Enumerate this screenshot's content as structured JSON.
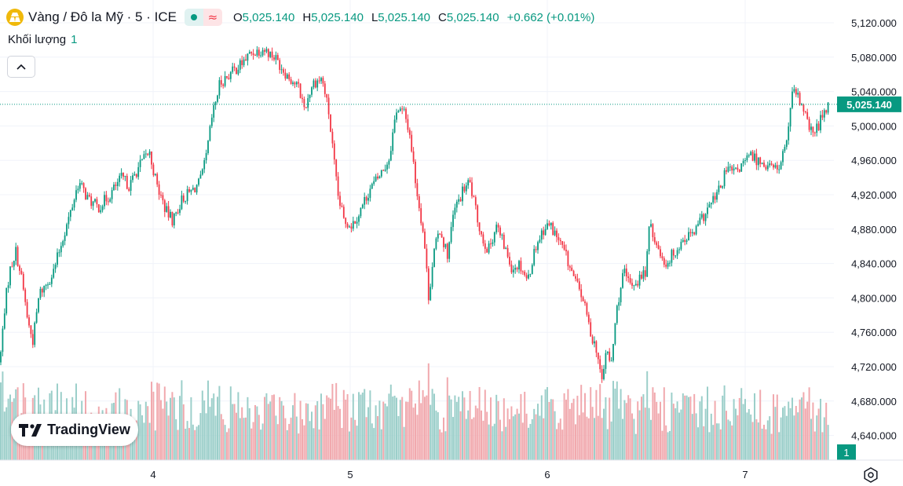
{
  "header": {
    "symbol": "Vàng / Đô la Mỹ · 5 · ICE",
    "open_label": "O",
    "open": "5,025.140",
    "high_label": "H",
    "high": "5,025.140",
    "low_label": "L",
    "low": "5,025.140",
    "close_label": "C",
    "close": "5,025.140",
    "change": "+0.662 (+0.01%)"
  },
  "volume": {
    "label": "Khối lượng",
    "value": "1",
    "badge": "1"
  },
  "logo_text": "TradingView",
  "colors": {
    "up": "#089981",
    "down": "#f23645",
    "up_vol": "#9ccfca",
    "down_vol": "#f1a9ae",
    "grid": "#f0f3fa"
  },
  "chart_data": {
    "type": "candlestick",
    "ylim": [
      4615,
      5140
    ],
    "yticks": [
      "5,120.000",
      "5,080.000",
      "5,040.000",
      "5,000.000",
      "4,960.000",
      "4,920.000",
      "4,880.000",
      "4,840.000",
      "4,800.000",
      "4,760.000",
      "4,720.000",
      "4,680.000",
      "4,640.000"
    ],
    "xticks": [
      "4",
      "5",
      "6",
      "7"
    ],
    "last_price": "5,025.140",
    "price_path": [
      [
        0,
        4725
      ],
      [
        6,
        4790
      ],
      [
        12,
        4830
      ],
      [
        20,
        4855
      ],
      [
        28,
        4820
      ],
      [
        36,
        4770
      ],
      [
        42,
        4750
      ],
      [
        50,
        4805
      ],
      [
        58,
        4815
      ],
      [
        68,
        4830
      ],
      [
        80,
        4870
      ],
      [
        90,
        4900
      ],
      [
        100,
        4935
      ],
      [
        112,
        4915
      ],
      [
        125,
        4905
      ],
      [
        140,
        4920
      ],
      [
        155,
        4940
      ],
      [
        165,
        4930
      ],
      [
        175,
        4950
      ],
      [
        190,
        4970
      ],
      [
        200,
        4930
      ],
      [
        212,
        4900
      ],
      [
        220,
        4890
      ],
      [
        232,
        4915
      ],
      [
        245,
        4925
      ],
      [
        255,
        4935
      ],
      [
        262,
        4960
      ],
      [
        270,
        5010
      ],
      [
        280,
        5050
      ],
      [
        292,
        5060
      ],
      [
        305,
        5070
      ],
      [
        320,
        5085
      ],
      [
        335,
        5090
      ],
      [
        350,
        5080
      ],
      [
        365,
        5060
      ],
      [
        380,
        5045
      ],
      [
        388,
        5020
      ],
      [
        398,
        5050
      ],
      [
        410,
        5055
      ],
      [
        418,
        5020
      ],
      [
        424,
        4970
      ],
      [
        430,
        4920
      ],
      [
        438,
        4890
      ],
      [
        448,
        4885
      ],
      [
        458,
        4900
      ],
      [
        470,
        4925
      ],
      [
        482,
        4940
      ],
      [
        495,
        4960
      ],
      [
        505,
        5020
      ],
      [
        515,
        5015
      ],
      [
        522,
        4990
      ],
      [
        530,
        4930
      ],
      [
        540,
        4870
      ],
      [
        546,
        4800
      ],
      [
        552,
        4850
      ],
      [
        560,
        4880
      ],
      [
        570,
        4850
      ],
      [
        578,
        4900
      ],
      [
        590,
        4925
      ],
      [
        598,
        4935
      ],
      [
        606,
        4900
      ],
      [
        614,
        4870
      ],
      [
        622,
        4855
      ],
      [
        632,
        4885
      ],
      [
        642,
        4860
      ],
      [
        652,
        4835
      ],
      [
        662,
        4840
      ],
      [
        672,
        4820
      ],
      [
        682,
        4860
      ],
      [
        692,
        4880
      ],
      [
        700,
        4885
      ],
      [
        710,
        4870
      ],
      [
        720,
        4850
      ],
      [
        732,
        4820
      ],
      [
        742,
        4800
      ],
      [
        752,
        4760
      ],
      [
        760,
        4740
      ],
      [
        766,
        4700
      ],
      [
        772,
        4740
      ],
      [
        778,
        4720
      ],
      [
        786,
        4790
      ],
      [
        794,
        4830
      ],
      [
        802,
        4815
      ],
      [
        812,
        4820
      ],
      [
        822,
        4830
      ],
      [
        828,
        4890
      ],
      [
        836,
        4860
      ],
      [
        848,
        4840
      ],
      [
        860,
        4855
      ],
      [
        872,
        4870
      ],
      [
        884,
        4875
      ],
      [
        896,
        4895
      ],
      [
        906,
        4910
      ],
      [
        916,
        4925
      ],
      [
        926,
        4950
      ],
      [
        936,
        4945
      ],
      [
        946,
        4955
      ],
      [
        956,
        4965
      ],
      [
        966,
        4960
      ],
      [
        976,
        4955
      ],
      [
        986,
        4950
      ],
      [
        994,
        4955
      ],
      [
        1002,
        4985
      ],
      [
        1010,
        5040
      ],
      [
        1018,
        5030
      ],
      [
        1026,
        5010
      ],
      [
        1034,
        4990
      ],
      [
        1042,
        5000
      ],
      [
        1050,
        5020
      ],
      [
        1055,
        5025
      ]
    ]
  }
}
